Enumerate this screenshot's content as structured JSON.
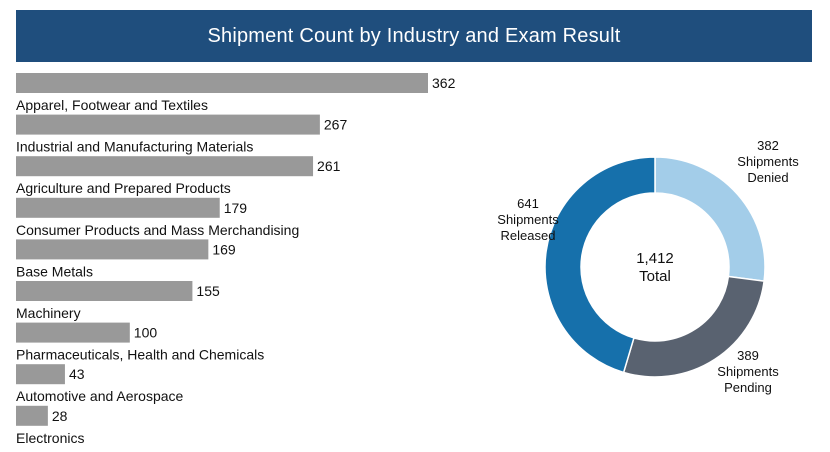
{
  "title": "Shipment Count by Industry and Exam Result",
  "colors": {
    "header_bg": "#1f4e7d",
    "bar": "#999999",
    "released": "#1670ab",
    "pending": "#596270",
    "denied": "#a3cde9"
  },
  "chart_data": [
    {
      "type": "bar",
      "orientation": "horizontal",
      "title": "Shipment Count by Industry and Exam Result",
      "categories": [
        "Apparel, Footwear and Textiles",
        "Industrial and Manufacturing Materials",
        "Agriculture and Prepared Products",
        "Consumer Products and Mass Merchandising",
        "Base Metals",
        "Machinery",
        "Pharmaceuticals, Health and Chemicals",
        "Automotive and Aerospace",
        "Electronics"
      ],
      "values": [
        362,
        267,
        261,
        179,
        169,
        155,
        100,
        43,
        28
      ],
      "data_labels": [
        "362",
        "267",
        "261",
        "179",
        "169",
        "155",
        "100",
        "43",
        "28"
      ],
      "xlim": [
        0,
        362
      ],
      "xlabel": "",
      "ylabel": ""
    },
    {
      "type": "pie",
      "donut": true,
      "center_value": "1,412",
      "center_label": "Total",
      "slices": [
        {
          "name": "Shipments Denied",
          "value": 382,
          "label_value": "382",
          "label_line1": "Shipments",
          "label_line2": "Denied",
          "color": "#a3cde9"
        },
        {
          "name": "Shipments Pending",
          "value": 389,
          "label_value": "389",
          "label_line1": "Shipments",
          "label_line2": "Pending",
          "color": "#596270"
        },
        {
          "name": "Shipments Released",
          "value": 641,
          "label_value": "641",
          "label_line1": "Shipments",
          "label_line2": "Released",
          "color": "#1670ab"
        }
      ]
    }
  ]
}
